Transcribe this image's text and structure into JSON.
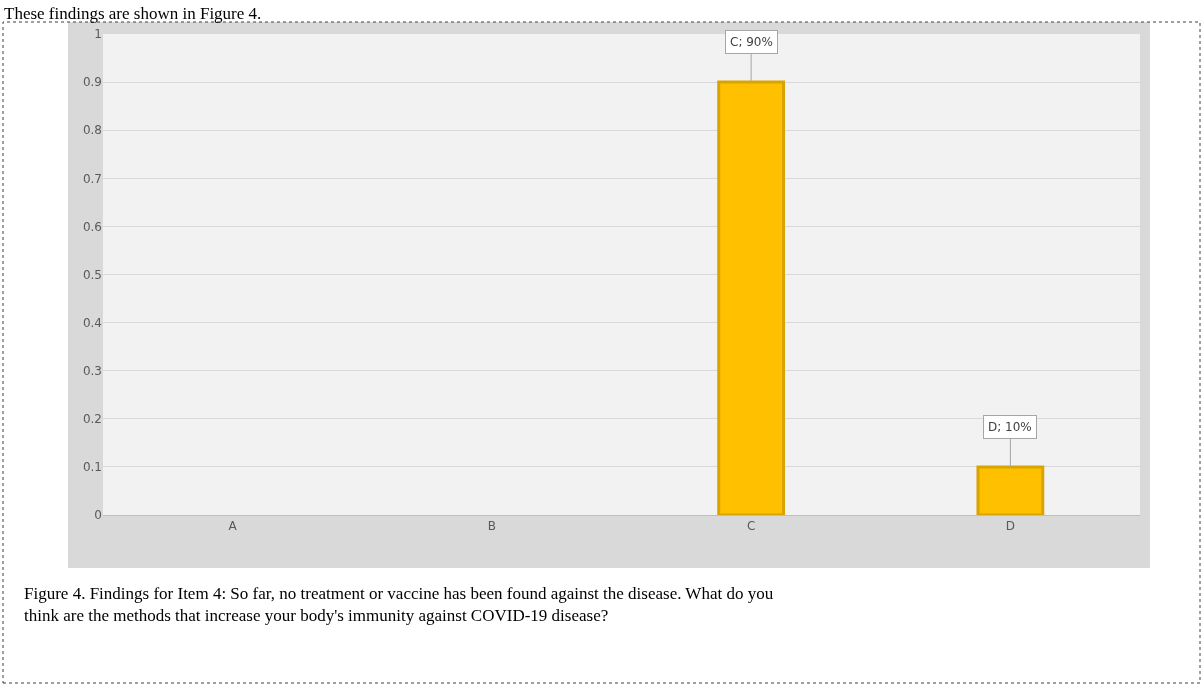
{
  "chart_data": {
    "type": "bar",
    "categories": [
      "A",
      "B",
      "C",
      "D"
    ],
    "values": [
      0,
      0,
      0.9,
      0.1
    ],
    "color": "#ffc000",
    "value_labels": [
      null,
      null,
      "C; 90%",
      "D; 10%"
    ],
    "ylim": [
      0,
      1
    ],
    "yticks": [
      0,
      0.1,
      0.2,
      0.3,
      0.4,
      0.5,
      0.6,
      0.7,
      0.8,
      0.9,
      1
    ],
    "grid": "y",
    "annotations": [
      "These findings are shown in Figure 4.",
      "Figure 4. Findings for Item 4: So far, no treatment or vaccine has been found against the disease. What do you think are the methods that increase your body's immunity against COVID-19 disease?"
    ]
  }
}
